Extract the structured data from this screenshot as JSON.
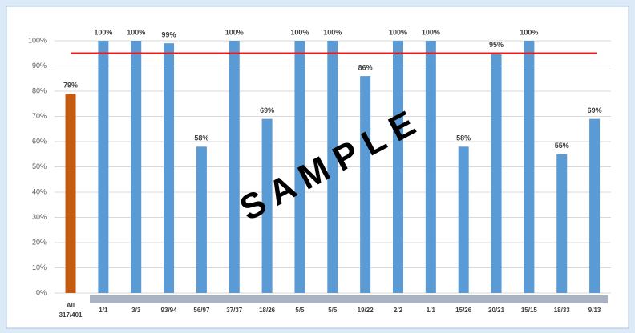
{
  "chart_data": {
    "type": "bar",
    "categories": [
      "All 317/401",
      "1/1",
      "3/3",
      "93/94",
      "56/97",
      "37/37",
      "18/26",
      "5/5",
      "5/5",
      "19/22",
      "2/2",
      "1/1",
      "15/26",
      "20/21",
      "15/15",
      "18/33",
      "9/13"
    ],
    "values": [
      79,
      100,
      100,
      99,
      58,
      100,
      69,
      100,
      100,
      86,
      100,
      100,
      58,
      95,
      100,
      55,
      69
    ],
    "value_labels": [
      "79%",
      "100%",
      "100%",
      "99%",
      "58%",
      "100%",
      "69%",
      "100%",
      "100%",
      "86%",
      "100%",
      "100%",
      "58%",
      "95%",
      "100%",
      "55%",
      "69%"
    ],
    "colors": [
      "#c55a11",
      "#5b9bd5",
      "#5b9bd5",
      "#5b9bd5",
      "#5b9bd5",
      "#5b9bd5",
      "#5b9bd5",
      "#5b9bd5",
      "#5b9bd5",
      "#5b9bd5",
      "#5b9bd5",
      "#5b9bd5",
      "#5b9bd5",
      "#5b9bd5",
      "#5b9bd5",
      "#5b9bd5",
      "#5b9bd5"
    ],
    "target": 95,
    "target_color": "#e02020",
    "ylim": [
      0,
      100
    ],
    "yticks": [
      {
        "value": 0,
        "label": "0%"
      },
      {
        "value": 10,
        "label": "10%"
      },
      {
        "value": 20,
        "label": "20%"
      },
      {
        "value": 30,
        "label": "30%"
      },
      {
        "value": 40,
        "label": "40%"
      },
      {
        "value": 50,
        "label": "50%"
      },
      {
        "value": 60,
        "label": "60%"
      },
      {
        "value": 70,
        "label": "70%"
      },
      {
        "value": 80,
        "label": "80%"
      },
      {
        "value": 90,
        "label": "90%"
      },
      {
        "value": 100,
        "label": "100%"
      }
    ],
    "grid": true,
    "watermark": "S A M P L E"
  }
}
